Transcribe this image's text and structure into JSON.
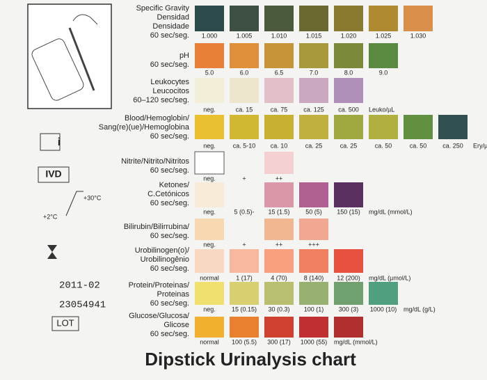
{
  "title": "Dipstick Urinalysis chart",
  "side": {
    "info": "i",
    "ivd": "IVD",
    "temp_high": "+30°C",
    "temp_low": "+2°C",
    "date": "2011-02",
    "lot_number": "23054941",
    "lot": "LOT"
  },
  "rows": [
    {
      "label": [
        "Specific Gravity",
        "Densidad",
        "Densidade",
        "60 sec/seg."
      ],
      "swatches": [
        {
          "col": 0,
          "color": "#2d4a4a"
        },
        {
          "col": 1,
          "color": "#3e5044"
        },
        {
          "col": 2,
          "color": "#4a5a3a"
        },
        {
          "col": 3,
          "color": "#6a6a30"
        },
        {
          "col": 4,
          "color": "#8a7a30"
        },
        {
          "col": 5,
          "color": "#b08a30"
        },
        {
          "col": 6,
          "color": "#d8904a"
        }
      ],
      "values": [
        {
          "col": 0,
          "text": "1.000"
        },
        {
          "col": 1,
          "text": "1.005"
        },
        {
          "col": 2,
          "text": "1.010"
        },
        {
          "col": 3,
          "text": "1.015"
        },
        {
          "col": 4,
          "text": "1.020"
        },
        {
          "col": 5,
          "text": "1.025"
        },
        {
          "col": 6,
          "text": "1.030"
        }
      ]
    },
    {
      "label": [
        "pH",
        "60 sec/seg."
      ],
      "swatches": [
        {
          "col": 0,
          "color": "#e8803a"
        },
        {
          "col": 1,
          "color": "#e0903a"
        },
        {
          "col": 2,
          "color": "#c8943a"
        },
        {
          "col": 3,
          "color": "#a89a3a"
        },
        {
          "col": 4,
          "color": "#7a8a3a"
        },
        {
          "col": 5,
          "color": "#5a8a40"
        }
      ],
      "values": [
        {
          "col": 0,
          "text": "5.0"
        },
        {
          "col": 1,
          "text": "6.0"
        },
        {
          "col": 2,
          "text": "6.5"
        },
        {
          "col": 3,
          "text": "7.0"
        },
        {
          "col": 4,
          "text": "8.0"
        },
        {
          "col": 5,
          "text": "9.0"
        }
      ]
    },
    {
      "label": [
        "Leukocytes",
        "Leucocitos",
        "60–120 sec/seg."
      ],
      "swatches": [
        {
          "col": 0,
          "color": "#f2eed8"
        },
        {
          "col": 1,
          "color": "#eee6cc"
        },
        {
          "col": 2,
          "color": "#e2c0c8"
        },
        {
          "col": 3,
          "color": "#caa8c2"
        },
        {
          "col": 4,
          "color": "#b090b8"
        }
      ],
      "values": [
        {
          "col": 0,
          "text": "neg."
        },
        {
          "col": 1,
          "text": "ca. 15"
        },
        {
          "col": 2,
          "text": "ca. 75"
        },
        {
          "col": 3,
          "text": "ca. 125"
        },
        {
          "col": 4,
          "text": "ca. 500"
        }
      ],
      "unit": "Leuko/µL"
    },
    {
      "label": [
        "Blood/Hemoglobin/",
        "Sang(re)(ue)/Hemoglobina",
        "60 sec/seg."
      ],
      "swatches": [
        {
          "col": 0,
          "color": "#e8c030"
        },
        {
          "col": 1,
          "color": "#d2b830"
        },
        {
          "col": 2,
          "color": "#c8b030"
        },
        {
          "col": 3,
          "color": "#c0b040"
        },
        {
          "col": 4,
          "color": "#a0a840"
        },
        {
          "col": 5,
          "color": "#b0b040"
        },
        {
          "col": 6,
          "color": "#609040"
        },
        {
          "col": 7,
          "color": "#305050"
        }
      ],
      "values": [
        {
          "col": 0,
          "text": "neg."
        },
        {
          "col": 1,
          "text": "ca. 5-10"
        },
        {
          "col": 2,
          "text": "ca. 10"
        },
        {
          "col": 3,
          "text": "ca. 25"
        },
        {
          "col": 4,
          "text": "ca. 25"
        },
        {
          "col": 5,
          "text": "ca. 50"
        },
        {
          "col": 6,
          "text": "ca. 50"
        },
        {
          "col": 7,
          "text": "ca. 250"
        }
      ],
      "unit": "Ery/µL"
    },
    {
      "label": [
        "Nitrite/Nitrito/Nitritos",
        "60 sec/seg."
      ],
      "swatches": [
        {
          "col": 0,
          "color": "#ffffff"
        },
        {
          "col": 2,
          "color": "#f5d0d0"
        }
      ],
      "values": [
        {
          "col": 0,
          "text": "neg."
        },
        {
          "col": 1,
          "text": "+"
        },
        {
          "col": 2,
          "text": "++"
        }
      ]
    },
    {
      "label": [
        "Ketones/",
        "C.Cetónicos",
        "60 sec/seg."
      ],
      "swatches": [
        {
          "col": 0,
          "color": "#f8ecd8"
        },
        {
          "col": 2,
          "color": "#d898a8"
        },
        {
          "col": 3,
          "color": "#b06090"
        },
        {
          "col": 4,
          "color": "#5a3060"
        }
      ],
      "values": [
        {
          "col": 0,
          "text": "neg."
        },
        {
          "col": 1,
          "text": "5 (0.5)-"
        },
        {
          "col": 2,
          "text": "15 (1.5)"
        },
        {
          "col": 3,
          "text": "50 (5)"
        },
        {
          "col": 4,
          "text": "150 (15)"
        }
      ],
      "unit": "mg/dL (mmol/L)"
    },
    {
      "label": [
        "Bilirubin/Bilirrubina/",
        "60 sec/seg."
      ],
      "swatches": [
        {
          "col": 0,
          "color": "#f8d8b0"
        },
        {
          "col": 2,
          "color": "#f0b890"
        },
        {
          "col": 3,
          "color": "#f0a890"
        }
      ],
      "values": [
        {
          "col": 0,
          "text": "neg."
        },
        {
          "col": 1,
          "text": "+"
        },
        {
          "col": 2,
          "text": "++"
        },
        {
          "col": 3,
          "text": "+++"
        }
      ]
    },
    {
      "label": [
        "Urobilinogen(o)/",
        "Urobilinogênio",
        "60 sec/seg."
      ],
      "swatches": [
        {
          "col": 0,
          "color": "#f8d8c0"
        },
        {
          "col": 1,
          "color": "#f8b8a0"
        },
        {
          "col": 2,
          "color": "#f8a080"
        },
        {
          "col": 3,
          "color": "#f08060"
        },
        {
          "col": 4,
          "color": "#e85040"
        }
      ],
      "values": [
        {
          "col": 0,
          "text": "normal"
        },
        {
          "col": 1,
          "text": "1 (17)"
        },
        {
          "col": 2,
          "text": "4 (70)"
        },
        {
          "col": 3,
          "text": "8 (140)"
        },
        {
          "col": 4,
          "text": "12 (200)"
        }
      ],
      "unit": "mg/dL (µmol/L)"
    },
    {
      "label": [
        "Protein/Proteinas/",
        "Proteinas",
        "60 sec/seg."
      ],
      "swatches": [
        {
          "col": 0,
          "color": "#f0e070"
        },
        {
          "col": 1,
          "color": "#d8d070"
        },
        {
          "col": 2,
          "color": "#b8c070"
        },
        {
          "col": 3,
          "color": "#98b070"
        },
        {
          "col": 4,
          "color": "#70a070"
        },
        {
          "col": 5,
          "color": "#50a080"
        }
      ],
      "values": [
        {
          "col": 0,
          "text": "neg."
        },
        {
          "col": 1,
          "text": "15 (0.15)"
        },
        {
          "col": 2,
          "text": "30 (0.3)"
        },
        {
          "col": 3,
          "text": "100 (1)"
        },
        {
          "col": 4,
          "text": "300 (3)"
        },
        {
          "col": 5,
          "text": "1000 (10)"
        }
      ],
      "unit": "mg/dL (g/L)"
    },
    {
      "label": [
        "Glucose/Glucosa/",
        "Glicose",
        "60 sec/seg."
      ],
      "swatches": [
        {
          "col": 0,
          "color": "#f0b030"
        },
        {
          "col": 1,
          "color": "#e88030"
        },
        {
          "col": 2,
          "color": "#d04030"
        },
        {
          "col": 3,
          "color": "#c03030"
        },
        {
          "col": 4,
          "color": "#b03030"
        }
      ],
      "values": [
        {
          "col": 0,
          "text": "normal"
        },
        {
          "col": 1,
          "text": "100 (5.5)"
        },
        {
          "col": 2,
          "text": "300 (17)"
        },
        {
          "col": 3,
          "text": "1000 (55)"
        }
      ],
      "unit": "mg/dL (mmol/L)"
    }
  ]
}
